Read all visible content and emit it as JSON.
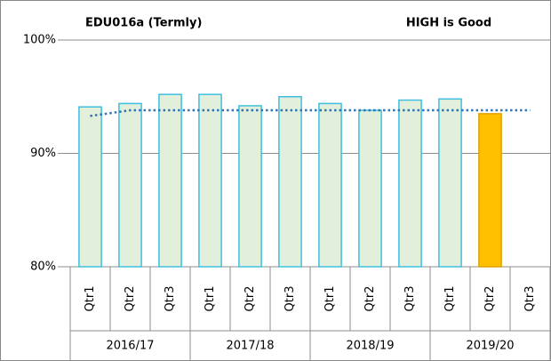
{
  "chart_data": {
    "type": "bar",
    "title": "EDU016a (Termly)",
    "annotation": "HIGH is Good",
    "categories": [
      "Qtr1",
      "Qtr2",
      "Qtr3",
      "Qtr1",
      "Qtr2",
      "Qtr3",
      "Qtr1",
      "Qtr2",
      "Qtr3",
      "Qtr1",
      "Qtr2",
      "Qtr3"
    ],
    "groups": [
      "2016/17",
      "2017/18",
      "2018/19",
      "2019/20"
    ],
    "series": [
      {
        "type": "bar",
        "color": "#e2efda",
        "edgecolor": "#3fbfdf",
        "colors": [
          "#e2efda",
          "#e2efda",
          "#e2efda",
          "#e2efda",
          "#e2efda",
          "#e2efda",
          "#e2efda",
          "#e2efda",
          "#e2efda",
          "#e2efda",
          "#ffc000",
          "#e2efda"
        ],
        "edgecolors": [
          "#3fbfdf",
          "#3fbfdf",
          "#3fbfdf",
          "#3fbfdf",
          "#3fbfdf",
          "#3fbfdf",
          "#3fbfdf",
          "#3fbfdf",
          "#3fbfdf",
          "#3fbfdf",
          "#e0a000",
          "#3fbfdf"
        ],
        "values": [
          94.1,
          94.4,
          95.2,
          95.2,
          94.2,
          95.0,
          94.4,
          93.8,
          94.7,
          94.8,
          93.5,
          null
        ]
      },
      {
        "type": "line",
        "color": "#2e75b6",
        "linestyle": "dotted",
        "values": [
          93.3,
          93.8,
          93.8,
          93.8,
          93.8,
          93.8,
          93.8,
          93.8,
          93.8,
          93.8,
          93.8,
          93.8
        ]
      }
    ],
    "ylim": [
      80,
      100
    ],
    "yticks": [
      {
        "value": 80,
        "label": "80%"
      },
      {
        "value": 90,
        "label": "90%"
      },
      {
        "value": 100,
        "label": "100%"
      }
    ],
    "grid": true
  }
}
